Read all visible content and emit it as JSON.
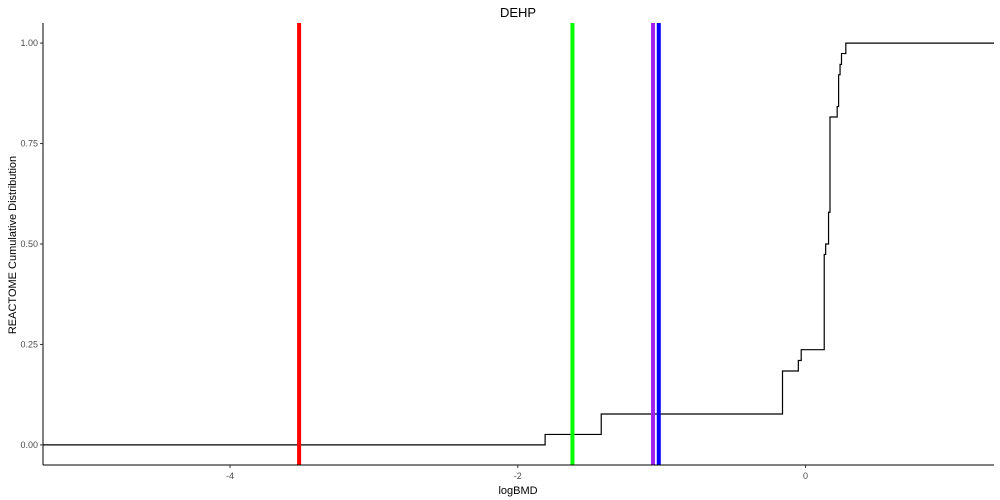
{
  "chart_data": {
    "type": "line",
    "title": "DEHP",
    "xlabel": "logBMD",
    "ylabel": "REACTOME Cumulative Distribution",
    "xlim": [
      -5.3,
      1.31
    ],
    "ylim": [
      -0.05,
      1.05
    ],
    "x_ticks": [
      -4,
      -2,
      0
    ],
    "x_tick_labels": [
      "-4",
      "-2",
      "0"
    ],
    "y_ticks": [
      0,
      0.25,
      0.5,
      0.75,
      1
    ],
    "y_tick_labels": [
      "0.00",
      "0.25",
      "0.50",
      "0.75",
      "1.00"
    ],
    "grid": false,
    "legend": "none",
    "series": [
      {
        "color": "#000000",
        "step": true,
        "x": [
          -5.3,
          -1.81,
          -1.42,
          -0.16,
          -0.05,
          -0.03,
          0.13,
          0.14,
          0.16,
          0.17,
          0.22,
          0.23,
          0.24,
          0.25,
          0.26,
          0.28,
          1.31
        ],
        "y": [
          0.0,
          0.026,
          0.077,
          0.184,
          0.21,
          0.237,
          0.474,
          0.5,
          0.579,
          0.816,
          0.842,
          0.921,
          0.947,
          0.974,
          0.974,
          1.0,
          1.0
        ]
      }
    ],
    "vlines": [
      {
        "x": -3.52,
        "color": "#ff0000"
      },
      {
        "x": -1.62,
        "color": "#00ff00"
      },
      {
        "x": -1.06,
        "color": "#a020f0"
      },
      {
        "x": -1.02,
        "color": "#0000ff"
      }
    ]
  }
}
